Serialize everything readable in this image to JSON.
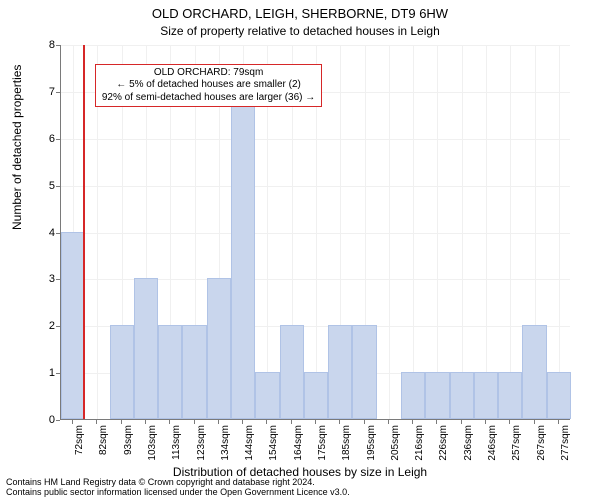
{
  "title_main": "OLD ORCHARD, LEIGH, SHERBORNE, DT9 6HW",
  "title_sub": "Size of property relative to detached houses in Leigh",
  "y_axis_label": "Number of detached properties",
  "x_axis_label": "Distribution of detached houses by size in Leigh",
  "footer_line1": "Contains HM Land Registry data © Crown copyright and database right 2024.",
  "footer_line2": "Contains public sector information licensed under the Open Government Licence v3.0.",
  "annotation": {
    "line1": "OLD ORCHARD: 79sqm",
    "line2": "← 5% of detached houses are smaller (2)",
    "line3": "92% of semi-detached houses are larger (36) →"
  },
  "chart": {
    "type": "histogram",
    "ylim": [
      0,
      8
    ],
    "yticks": [
      0,
      1,
      2,
      3,
      4,
      5,
      6,
      7,
      8
    ],
    "x_min_sqm": 70,
    "bar_width_sqm": 10,
    "n_bars": 21,
    "values": [
      4,
      0,
      2,
      3,
      2,
      2,
      3,
      7,
      1,
      2,
      1,
      2,
      2,
      0,
      1,
      1,
      1,
      1,
      1,
      2,
      1
    ],
    "xticks_sqm": [
      72,
      82,
      93,
      103,
      113,
      123,
      134,
      144,
      154,
      164,
      175,
      185,
      195,
      205,
      216,
      226,
      236,
      246,
      257,
      267,
      277
    ],
    "ref_sqm": 79,
    "bar_color": "#c9d6ed",
    "bar_border": "#b0c3e6",
    "ref_color": "#d62728",
    "grid_color": "#f0f0f0",
    "axis_color": "#7a7a7a",
    "background": "#ffffff",
    "title_fontsize": 13,
    "subtitle_fontsize": 12,
    "label_fontsize": 12,
    "tick_fontsize": 11,
    "xtick_fontsize": 10,
    "annotation_fontsize": 10
  }
}
